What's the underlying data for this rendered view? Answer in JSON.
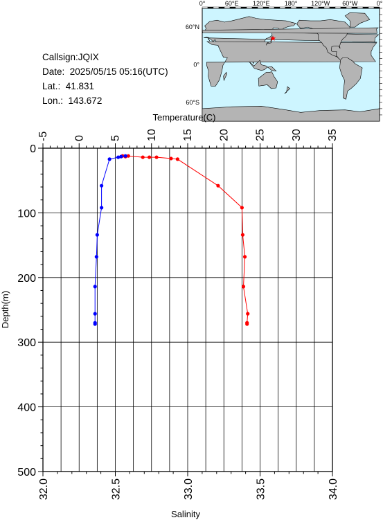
{
  "station": {
    "callsign": "Callsign:JQIX",
    "date": "Date:  2025/05/15 05:16(UTC)",
    "lat": "Lat.:  41.831",
    "lon": "Lon.:  143.672"
  },
  "map": {
    "lon_labels": [
      "0°",
      "60°E",
      "120°E",
      "180°",
      "120°W",
      "60°W",
      "0°"
    ],
    "lat_labels": [
      "60°N",
      "0°",
      "60°S"
    ],
    "ocean_color": "#cdf5ff",
    "land_color": "#b4b4b4",
    "marker": {
      "lon": 143.672,
      "lat": 41.831,
      "color": "#ff0000",
      "symbol": "star"
    }
  },
  "chart_data": {
    "type": "line",
    "top_axis": {
      "label": "Temperature(C)",
      "min": -5,
      "max": 35,
      "ticks": [
        "-5",
        "0",
        "5",
        "10",
        "15",
        "20",
        "25",
        "30",
        "35"
      ]
    },
    "bottom_axis": {
      "label": "Salinity",
      "min": 32.0,
      "max": 34.0,
      "ticks": [
        "32.0",
        "32.5",
        "33.0",
        "33.5",
        "34.0"
      ]
    },
    "y_axis": {
      "label": "Depth(m)",
      "min": 0,
      "max": 500,
      "inverted": true,
      "ticks": [
        "0",
        "100",
        "200",
        "300",
        "400",
        "500"
      ]
    },
    "grid": true,
    "series": [
      {
        "axis": "temperature",
        "color": "#ff0000",
        "depth": [
          12,
          13,
          12,
          14,
          14,
          14,
          16,
          17,
          58,
          92,
          134,
          168,
          214,
          256,
          270,
          272
        ],
        "values": [
          6.0,
          6.4,
          6.8,
          8.8,
          9.7,
          10.7,
          12.7,
          13.6,
          19.2,
          22.5,
          22.6,
          22.9,
          22.7,
          23.3,
          23.2,
          23.2
        ]
      },
      {
        "axis": "salinity",
        "color": "#0000ff",
        "depth": [
          12,
          13,
          14,
          17,
          58,
          92,
          134,
          168,
          214,
          256,
          270,
          272
        ],
        "values": [
          32.57,
          32.54,
          32.52,
          32.46,
          32.405,
          32.405,
          32.375,
          32.37,
          32.36,
          32.36,
          32.36,
          32.36
        ]
      }
    ]
  }
}
